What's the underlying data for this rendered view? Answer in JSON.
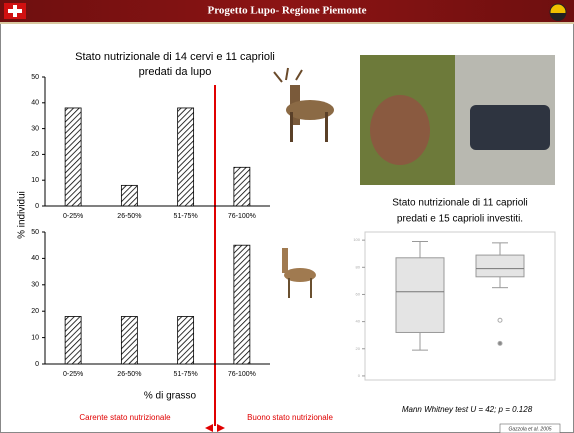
{
  "header": {
    "title": "Progetto Lupo- Regione Piemonte"
  },
  "chart_data": [
    {
      "type": "bar",
      "title": [
        "Stato nutrizionale di 14 cervi e 11 caprioli",
        "predati da lupo"
      ],
      "ylabel": "% individui",
      "categories": [
        "0-25%",
        "26-50%",
        "51-75%",
        "76-100%"
      ],
      "values": [
        38,
        8,
        38,
        15
      ],
      "ylim": [
        0,
        50
      ],
      "yticks": [
        0,
        10,
        20,
        30,
        40,
        50
      ]
    },
    {
      "type": "bar",
      "xlabel": "% di grasso",
      "categories": [
        "0-25%",
        "26-50%",
        "51-75%",
        "76-100%"
      ],
      "values": [
        18,
        18,
        18,
        45
      ],
      "ylim": [
        0,
        50
      ],
      "yticks": [
        0,
        10,
        20,
        30,
        40,
        50
      ]
    },
    {
      "type": "box",
      "title": [
        "Stato nutrizionale di 11 caprioli",
        "predati e 15 caprioli investiti."
      ],
      "series": [
        {
          "whisker_low": 19,
          "q1": 32,
          "median": 62,
          "q3": 87,
          "whisker_high": 99,
          "outliers": []
        },
        {
          "whisker_low": 65,
          "q1": 73,
          "median": 79,
          "q3": 89,
          "whisker_high": 98,
          "outliers": [
            41,
            24
          ]
        }
      ],
      "ylim": [
        -3,
        106
      ],
      "yticks": [
        0,
        20,
        40,
        60,
        80,
        100
      ],
      "annotation": "Mann Whitney test U = 42; p = 0.128"
    }
  ],
  "annotations": {
    "left": "Carente stato nutrizionale",
    "right": "Buono stato nutrizionale",
    "citation": "Gazzola et al. 2005"
  }
}
